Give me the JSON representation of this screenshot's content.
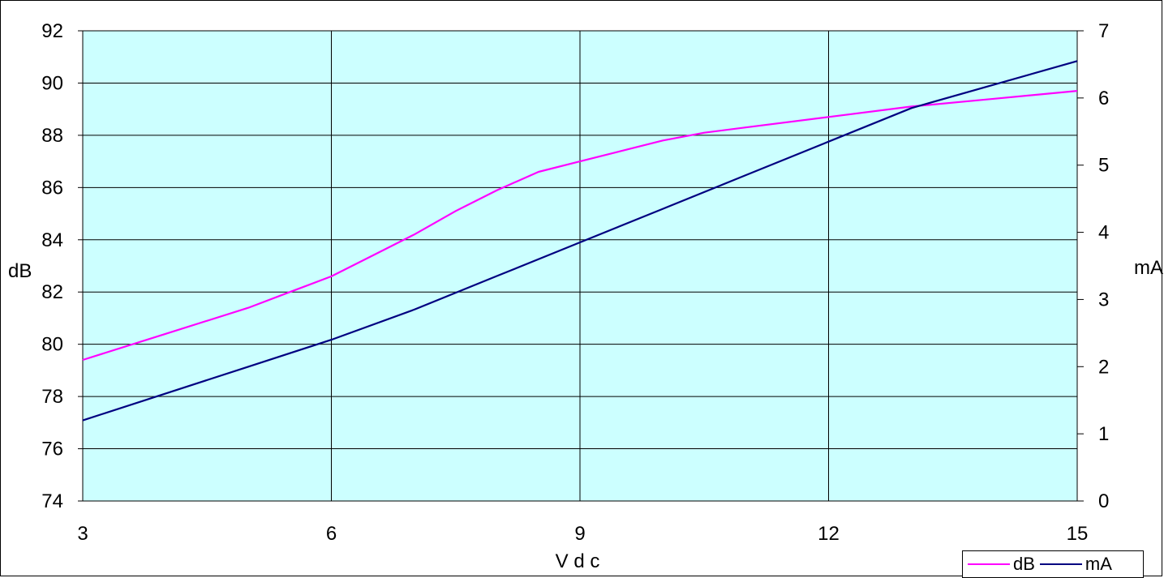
{
  "chart_data": {
    "type": "line",
    "xlabel": "V d c",
    "ylabel_left": "dB",
    "ylabel_right": "mA",
    "x_ticks": [
      "3",
      "6",
      "9",
      "12",
      "15"
    ],
    "y_left_ticks": [
      "74",
      "76",
      "78",
      "80",
      "82",
      "84",
      "86",
      "88",
      "90",
      "92"
    ],
    "y_right_ticks": [
      "0",
      "1",
      "2",
      "3",
      "4",
      "5",
      "6",
      "7"
    ],
    "xlim": [
      3,
      15
    ],
    "ylim_left": [
      74,
      92
    ],
    "ylim_right": [
      0,
      7
    ],
    "grid": true,
    "plot_background": "#ccffff",
    "legend_position": "bottom-right",
    "series": [
      {
        "name": "dB",
        "axis": "left",
        "color": "#ff00ff",
        "x": [
          3,
          4,
          5,
          5.5,
          6,
          6.5,
          7,
          7.5,
          8,
          8.5,
          9,
          9.5,
          10,
          10.5,
          11,
          12,
          13,
          14,
          15
        ],
        "y": [
          79.4,
          80.4,
          81.4,
          82.0,
          82.6,
          83.4,
          84.2,
          85.1,
          85.9,
          86.6,
          87.0,
          87.4,
          87.8,
          88.1,
          88.3,
          88.7,
          89.1,
          89.4,
          89.7
        ]
      },
      {
        "name": "mA",
        "axis": "right",
        "color": "#000080",
        "x": [
          3,
          4,
          5,
          6,
          7,
          8,
          9,
          10,
          11,
          12,
          13,
          14,
          15
        ],
        "y": [
          1.2,
          1.6,
          2.0,
          2.4,
          2.85,
          3.35,
          3.85,
          4.35,
          4.85,
          5.35,
          5.85,
          6.2,
          6.55
        ]
      }
    ]
  }
}
